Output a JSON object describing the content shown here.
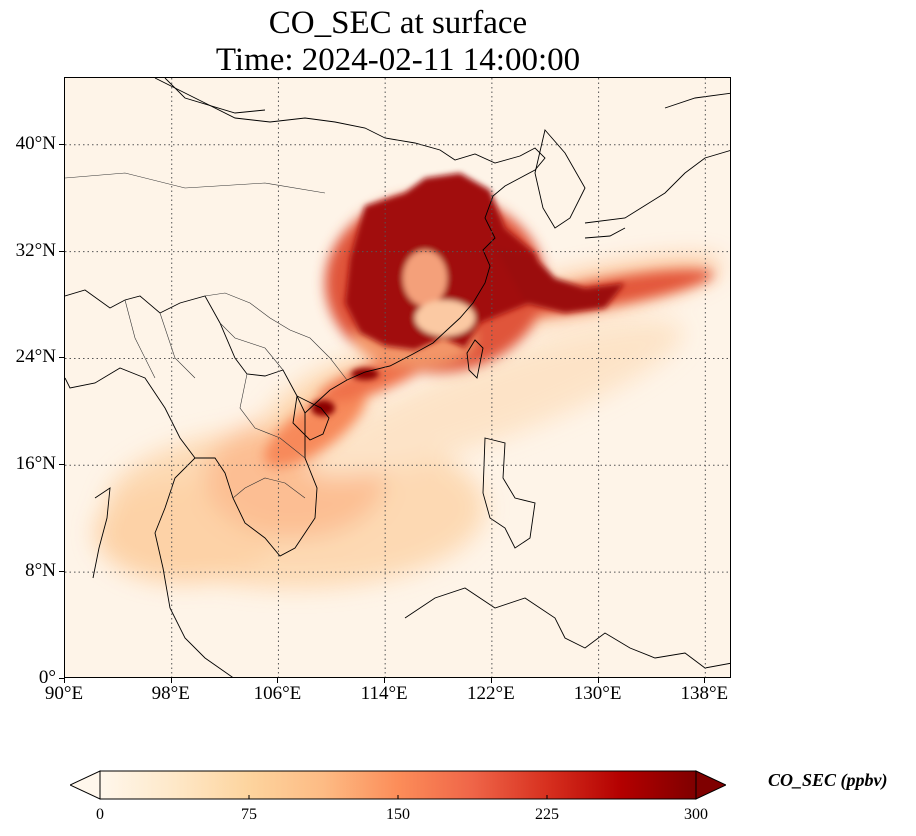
{
  "title": {
    "line1": "CO_SEC at surface",
    "line2": "Time: 2024-02-11 14:00:00"
  },
  "map": {
    "projection": "PlateCarree",
    "lon_range": [
      90,
      140
    ],
    "lat_range": [
      0,
      45
    ],
    "lon_ticks": [
      {
        "value": 90,
        "label": "90°E"
      },
      {
        "value": 98,
        "label": "98°E"
      },
      {
        "value": 106,
        "label": "106°E"
      },
      {
        "value": 114,
        "label": "114°E"
      },
      {
        "value": 122,
        "label": "122°E"
      },
      {
        "value": 130,
        "label": "130°E"
      },
      {
        "value": 138,
        "label": "138°E"
      }
    ],
    "lat_ticks": [
      {
        "value": 0,
        "label": "0°"
      },
      {
        "value": 8,
        "label": "8°N"
      },
      {
        "value": 16,
        "label": "16°N"
      },
      {
        "value": 24,
        "label": "24°N"
      },
      {
        "value": 32,
        "label": "32°N"
      },
      {
        "value": 40,
        "label": "40°N"
      }
    ],
    "gridlines": "dotted",
    "coastlines": true,
    "borders": true,
    "background_color": "#fef4e8"
  },
  "colorbar": {
    "label": "CO_SEC (ppbv)",
    "min": 0,
    "max": 300,
    "extend": "both",
    "ticks": [
      {
        "value": 0,
        "label": "0"
      },
      {
        "value": 75,
        "label": "75"
      },
      {
        "value": 150,
        "label": "150"
      },
      {
        "value": 225,
        "label": "225"
      },
      {
        "value": 300,
        "label": "300"
      }
    ],
    "colormap": "OrRd",
    "colors": [
      "#fff7ec",
      "#fee8c8",
      "#fdd49e",
      "#fdbb84",
      "#fc8d59",
      "#ef6548",
      "#d7301f",
      "#b30000",
      "#7f0000"
    ]
  }
}
